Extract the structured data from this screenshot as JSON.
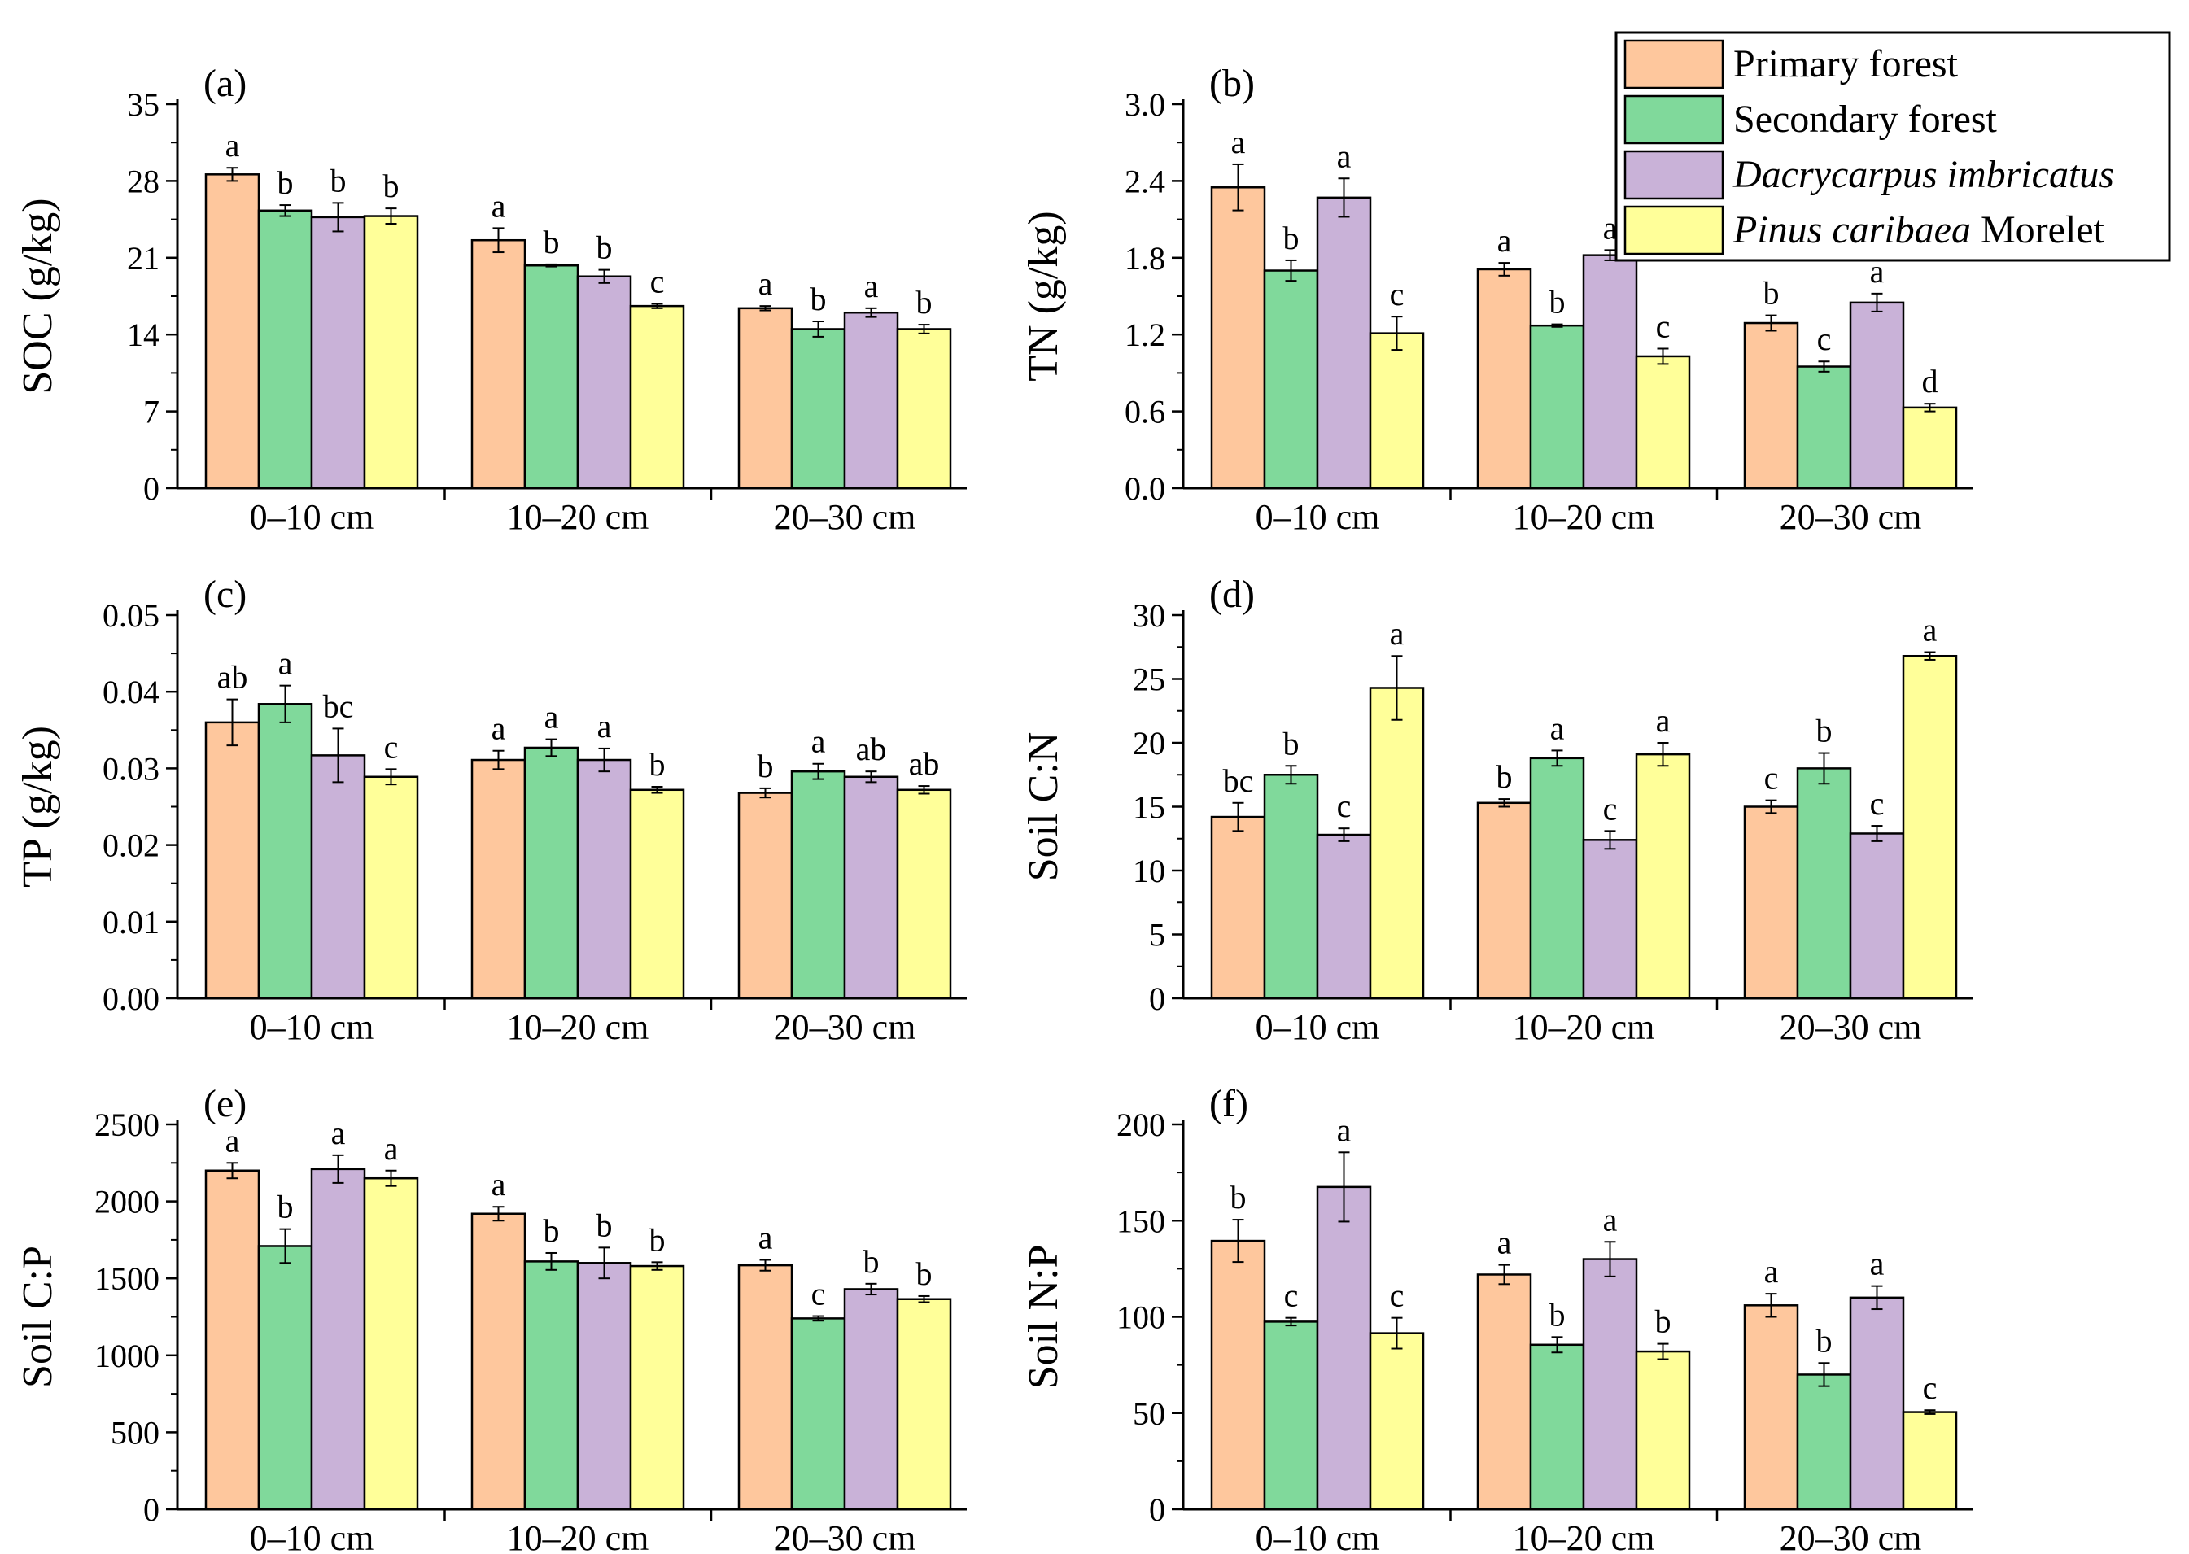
{
  "legend": {
    "entries": [
      {
        "key": "primary",
        "parts": [
          {
            "text": "Primary forest",
            "italic": false
          }
        ],
        "color": "#FEC79D"
      },
      {
        "key": "secondary",
        "parts": [
          {
            "text": "Secondary forest",
            "italic": false
          }
        ],
        "color": "#80D99B"
      },
      {
        "key": "dacrycarpus",
        "parts": [
          {
            "text": "Dacrycarpus imbricatus",
            "italic": true
          }
        ],
        "color": "#C9B2D8"
      },
      {
        "key": "pinus",
        "parts": [
          {
            "text": "Pinus caribaea",
            "italic": true
          },
          {
            "text": " Morelet",
            "italic": false
          }
        ],
        "color": "#FFFF99"
      }
    ]
  },
  "chart_data": [
    {
      "type": "bar",
      "panel": "(a)",
      "ylabel": "SOC (g/kg)",
      "categories": [
        "0–10 cm",
        "10–20 cm",
        "20–30 cm"
      ],
      "ylim": [
        0,
        35
      ],
      "yticks": [
        "0",
        "7",
        "14",
        "21",
        "28",
        "35"
      ],
      "tickvals": [
        0,
        7,
        14,
        21,
        28,
        35
      ],
      "series": [
        {
          "name": "Primary forest",
          "values": [
            28.6,
            22.6,
            16.4
          ],
          "errors": [
            0.6,
            1.1,
            0.2
          ],
          "letters": [
            "a",
            "a",
            "a"
          ]
        },
        {
          "name": "Secondary forest",
          "values": [
            25.3,
            20.3,
            14.5
          ],
          "errors": [
            0.5,
            0.1,
            0.7
          ],
          "letters": [
            "b",
            "b",
            "b"
          ]
        },
        {
          "name": "Dacrycarpus imbricatus",
          "values": [
            24.7,
            19.3,
            16.0
          ],
          "errors": [
            1.3,
            0.6,
            0.4
          ],
          "letters": [
            "b",
            "b",
            "a"
          ]
        },
        {
          "name": "Pinus caribaea Morelet",
          "values": [
            24.8,
            16.6,
            14.5
          ],
          "errors": [
            0.7,
            0.2,
            0.4
          ],
          "letters": [
            "b",
            "c",
            "b"
          ]
        }
      ]
    },
    {
      "type": "bar",
      "panel": "(b)",
      "ylabel": "TN (g/kg)",
      "categories": [
        "0–10 cm",
        "10–20 cm",
        "20–30 cm"
      ],
      "ylim": [
        0,
        3.0
      ],
      "yticks": [
        "0.0",
        "0.6",
        "1.2",
        "1.8",
        "2.4",
        "3.0"
      ],
      "tickvals": [
        0,
        0.6,
        1.2,
        1.8,
        2.4,
        3.0
      ],
      "series": [
        {
          "name": "Primary forest",
          "values": [
            2.35,
            1.71,
            1.29
          ],
          "errors": [
            0.18,
            0.05,
            0.06
          ],
          "letters": [
            "a",
            "a",
            "b"
          ]
        },
        {
          "name": "Secondary forest",
          "values": [
            1.7,
            1.27,
            0.95
          ],
          "errors": [
            0.08,
            0.01,
            0.04
          ],
          "letters": [
            "b",
            "b",
            "c"
          ]
        },
        {
          "name": "Dacrycarpus imbricatus",
          "values": [
            2.27,
            1.82,
            1.45
          ],
          "errors": [
            0.15,
            0.04,
            0.07
          ],
          "letters": [
            "a",
            "a",
            "a"
          ]
        },
        {
          "name": "Pinus caribaea Morelet",
          "values": [
            1.21,
            1.03,
            0.63
          ],
          "errors": [
            0.13,
            0.06,
            0.03
          ],
          "letters": [
            "c",
            "c",
            "d"
          ]
        }
      ]
    },
    {
      "type": "bar",
      "panel": "(c)",
      "ylabel": "TP (g/kg)",
      "categories": [
        "0–10 cm",
        "10–20 cm",
        "20–30 cm"
      ],
      "ylim": [
        0,
        0.05
      ],
      "yticks": [
        "0.00",
        "0.01",
        "0.02",
        "0.03",
        "0.04",
        "0.05"
      ],
      "tickvals": [
        0,
        0.01,
        0.02,
        0.03,
        0.04,
        0.05
      ],
      "series": [
        {
          "name": "Primary forest",
          "values": [
            0.036,
            0.0311,
            0.0268
          ],
          "errors": [
            0.003,
            0.0012,
            0.0006
          ],
          "letters": [
            "ab",
            "a",
            "b"
          ]
        },
        {
          "name": "Secondary forest",
          "values": [
            0.0384,
            0.0327,
            0.0296
          ],
          "errors": [
            0.0024,
            0.0011,
            0.001
          ],
          "letters": [
            "a",
            "a",
            "a"
          ]
        },
        {
          "name": "Dacrycarpus imbricatus",
          "values": [
            0.0317,
            0.0311,
            0.0289
          ],
          "errors": [
            0.0035,
            0.0015,
            0.0007
          ],
          "letters": [
            "bc",
            "a",
            "ab"
          ]
        },
        {
          "name": "Pinus caribaea Morelet",
          "values": [
            0.0289,
            0.0272,
            0.0272
          ],
          "errors": [
            0.001,
            0.0004,
            0.0005
          ],
          "letters": [
            "c",
            "b",
            "ab"
          ]
        }
      ]
    },
    {
      "type": "bar",
      "panel": "(d)",
      "ylabel": "Soil C:N",
      "categories": [
        "0–10 cm",
        "10–20 cm",
        "20–30 cm"
      ],
      "ylim": [
        0,
        30
      ],
      "yticks": [
        "0",
        "5",
        "10",
        "15",
        "20",
        "25",
        "30"
      ],
      "tickvals": [
        0,
        5,
        10,
        15,
        20,
        25,
        30
      ],
      "series": [
        {
          "name": "Primary forest",
          "values": [
            14.2,
            15.3,
            15.0
          ],
          "errors": [
            1.1,
            0.3,
            0.5
          ],
          "letters": [
            "bc",
            "b",
            "c"
          ]
        },
        {
          "name": "Secondary forest",
          "values": [
            17.5,
            18.8,
            18.0
          ],
          "errors": [
            0.7,
            0.6,
            1.2
          ],
          "letters": [
            "b",
            "a",
            "b"
          ]
        },
        {
          "name": "Dacrycarpus imbricatus",
          "values": [
            12.8,
            12.4,
            12.9
          ],
          "errors": [
            0.5,
            0.7,
            0.6
          ],
          "letters": [
            "c",
            "c",
            "c"
          ]
        },
        {
          "name": "Pinus caribaea Morelet",
          "values": [
            24.3,
            19.1,
            26.8
          ],
          "errors": [
            2.5,
            0.9,
            0.3
          ],
          "letters": [
            "a",
            "a",
            "a"
          ]
        }
      ]
    },
    {
      "type": "bar",
      "panel": "(e)",
      "ylabel": "Soil C:P",
      "categories": [
        "0–10 cm",
        "10–20 cm",
        "20–30 cm"
      ],
      "ylim": [
        0,
        2500
      ],
      "yticks": [
        "0",
        "500",
        "1000",
        "1500",
        "2000",
        "2500"
      ],
      "tickvals": [
        0,
        500,
        1000,
        1500,
        2000,
        2500
      ],
      "series": [
        {
          "name": "Primary forest",
          "values": [
            2200,
            1920,
            1585
          ],
          "errors": [
            50,
            45,
            35
          ],
          "letters": [
            "a",
            "a",
            "a"
          ]
        },
        {
          "name": "Secondary forest",
          "values": [
            1710,
            1610,
            1240
          ],
          "errors": [
            110,
            55,
            15
          ],
          "letters": [
            "b",
            "b",
            "c"
          ]
        },
        {
          "name": "Dacrycarpus imbricatus",
          "values": [
            2210,
            1600,
            1430
          ],
          "errors": [
            90,
            100,
            35
          ],
          "letters": [
            "a",
            "b",
            "b"
          ]
        },
        {
          "name": "Pinus caribaea Morelet",
          "values": [
            2150,
            1580,
            1365
          ],
          "errors": [
            50,
            25,
            20
          ],
          "letters": [
            "a",
            "b",
            "b"
          ]
        }
      ]
    },
    {
      "type": "bar",
      "panel": "(f)",
      "ylabel": "Soil N:P",
      "categories": [
        "0–10 cm",
        "10–20 cm",
        "20–30 cm"
      ],
      "ylim": [
        0,
        200
      ],
      "yticks": [
        "0",
        "50",
        "100",
        "150",
        "200"
      ],
      "tickvals": [
        0,
        50,
        100,
        150,
        200
      ],
      "series": [
        {
          "name": "Primary forest",
          "values": [
            139.5,
            122.0,
            106.0
          ],
          "errors": [
            11.0,
            5.0,
            6.0
          ],
          "letters": [
            "b",
            "a",
            "a"
          ]
        },
        {
          "name": "Secondary forest",
          "values": [
            97.5,
            85.5,
            70.0
          ],
          "errors": [
            2.0,
            4.0,
            6.0
          ],
          "letters": [
            "c",
            "b",
            "b"
          ]
        },
        {
          "name": "Dacrycarpus imbricatus",
          "values": [
            167.5,
            130.0,
            110.0
          ],
          "errors": [
            18.0,
            9.0,
            6.0
          ],
          "letters": [
            "a",
            "a",
            "a"
          ]
        },
        {
          "name": "Pinus caribaea Morelet",
          "values": [
            91.5,
            82.0,
            50.5
          ],
          "errors": [
            8.0,
            4.0,
            1.0
          ],
          "letters": [
            "c",
            "b",
            "c"
          ]
        }
      ]
    }
  ]
}
